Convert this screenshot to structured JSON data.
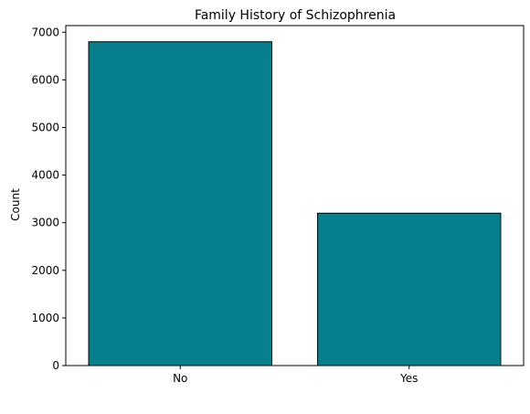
{
  "chart_data": {
    "type": "bar",
    "title": "Family History of Schizophrenia",
    "xlabel": "",
    "ylabel": "Count",
    "categories": [
      "No",
      "Yes"
    ],
    "values": [
      6800,
      3200
    ],
    "ylim": [
      0,
      7140
    ],
    "yticks": [
      0,
      1000,
      2000,
      3000,
      4000,
      5000,
      6000,
      7000
    ],
    "grid": false,
    "bar_color": "#087f8c",
    "edge_color": "#000000"
  }
}
